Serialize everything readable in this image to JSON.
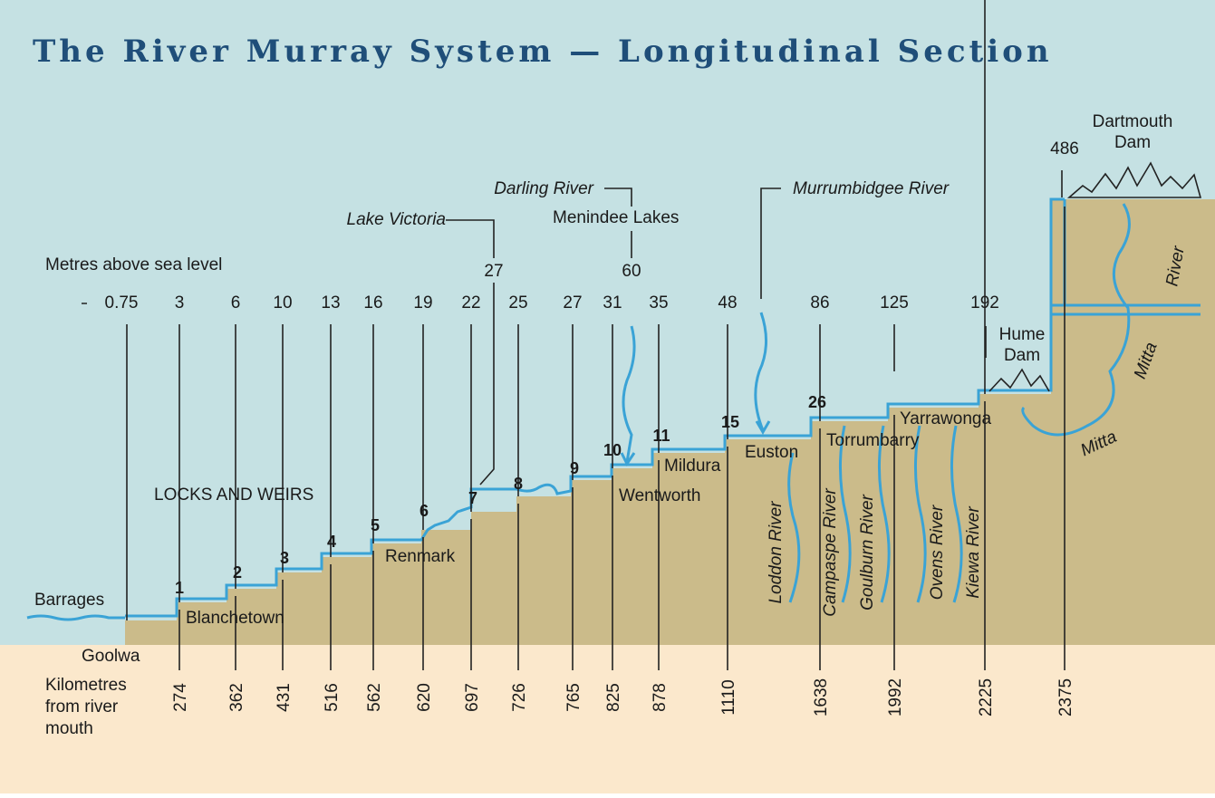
{
  "title": "The River Murray System — Longitudinal Section",
  "elevation_heading": "Metres above sea level",
  "distance_heading": [
    "Kilometres",
    "from river",
    "mouth"
  ],
  "elevations": [
    0.75,
    3,
    6,
    10,
    13,
    16,
    19,
    22,
    25,
    27,
    31,
    35,
    48,
    86,
    125,
    192,
    486
  ],
  "upper_elevations": [
    27,
    60
  ],
  "distances": [
    274,
    362,
    431,
    516,
    562,
    620,
    697,
    726,
    765,
    825,
    878,
    1110,
    1638,
    1992,
    2225,
    2375
  ],
  "locks_heading": "LOCKS AND WEIRS",
  "locks": [
    1,
    2,
    3,
    4,
    5,
    6,
    7,
    8,
    9,
    10,
    11,
    15,
    26
  ],
  "places": [
    "Barrages",
    "Goolwa",
    "Blanchetown",
    "Renmark",
    "Wentworth",
    "Mildura",
    "Euston",
    "Torrumbarry",
    "Yarrawonga"
  ],
  "hume_dam": [
    "Hume",
    "Dam"
  ],
  "dartmouth_dam": [
    "Dartmouth",
    "Dam"
  ],
  "callouts": [
    "Lake Victoria",
    "Darling River",
    "Menindee Lakes",
    "Murrumbidgee River"
  ],
  "tributaries": [
    "Loddon River",
    "Campaspe River",
    "Goulburn River",
    "Ovens River",
    "Kiewa River"
  ],
  "mitta_mitta": [
    "Mitta",
    "Mitta",
    "River"
  ]
}
